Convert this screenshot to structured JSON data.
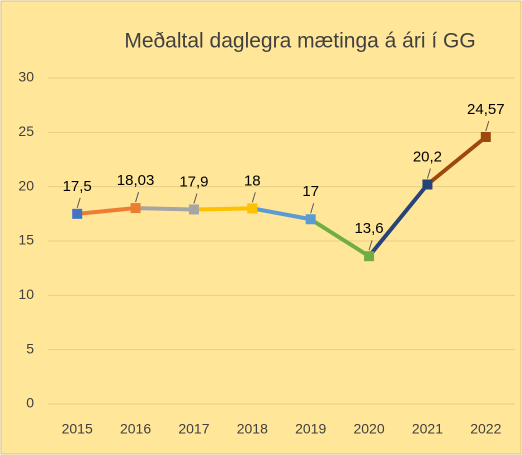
{
  "chart_data": {
    "type": "line",
    "title": "Meðaltal daglegra mætinga á ári í GG",
    "categories": [
      "2015",
      "2016",
      "2017",
      "2018",
      "2019",
      "2020",
      "2021",
      "2022"
    ],
    "values": [
      17.5,
      18.03,
      17.9,
      18,
      17,
      13.6,
      20.2,
      24.57
    ],
    "value_labels": [
      "17,5",
      "18,03",
      "17,9",
      "18",
      "17",
      "13,6",
      "20,2",
      "24,57"
    ],
    "colors": [
      "#4472c4",
      "#ed7d31",
      "#a5a5a5",
      "#ffc000",
      "#5b9bd5",
      "#70ad47",
      "#264478",
      "#9e480e"
    ],
    "ylim": [
      0,
      30
    ],
    "yticks": [
      0,
      5,
      10,
      15,
      20,
      25,
      30
    ],
    "grid": true
  }
}
